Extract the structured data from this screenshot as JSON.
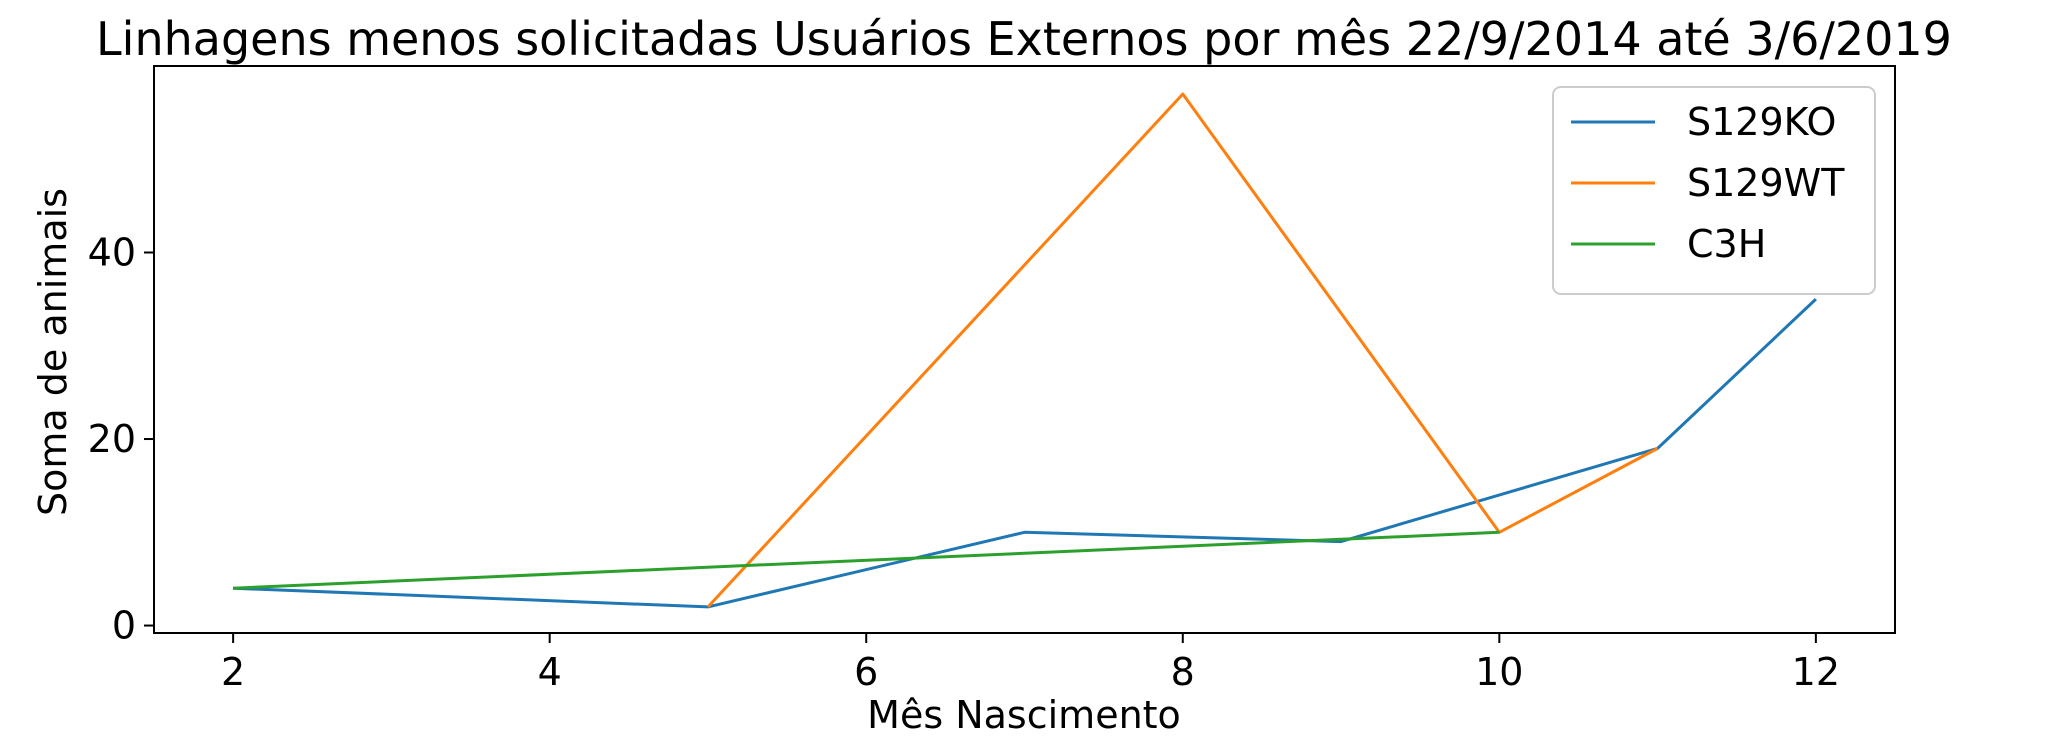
{
  "chart_data": {
    "type": "line",
    "title": "Linhagens menos solicitadas Usuários Externos por mês 22/9/2014 até 3/6/2019",
    "xlabel": "Mês Nascimento",
    "ylabel": "Soma de animais",
    "xlim": [
      1.5,
      12.5
    ],
    "ylim": [
      -0.8,
      60
    ],
    "xticks": [
      2,
      4,
      6,
      8,
      10,
      12
    ],
    "yticks": [
      0,
      20,
      40
    ],
    "grid": false,
    "legend_position": "top-right",
    "series": [
      {
        "name": "S129KO",
        "color": "#1f77b4",
        "x": [
          2,
          5,
          7,
          9,
          11,
          12
        ],
        "y": [
          4,
          2,
          10,
          9,
          19,
          35
        ]
      },
      {
        "name": "S129WT",
        "color": "#ff7f0e",
        "x": [
          5,
          8,
          10,
          11
        ],
        "y": [
          2,
          57,
          10,
          19
        ]
      },
      {
        "name": "C3H",
        "color": "#2ca02c",
        "x": [
          2,
          10
        ],
        "y": [
          4,
          10
        ]
      }
    ]
  }
}
